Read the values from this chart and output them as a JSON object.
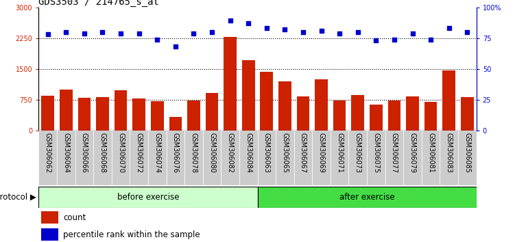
{
  "title": "GDS3503 / 214765_s_at",
  "categories": [
    "GSM306062",
    "GSM306064",
    "GSM306066",
    "GSM306068",
    "GSM306070",
    "GSM306072",
    "GSM306074",
    "GSM306076",
    "GSM306078",
    "GSM306080",
    "GSM306082",
    "GSM306084",
    "GSM306063",
    "GSM306065",
    "GSM306067",
    "GSM306069",
    "GSM306071",
    "GSM306073",
    "GSM306075",
    "GSM306077",
    "GSM306079",
    "GSM306081",
    "GSM306083",
    "GSM306085"
  ],
  "count": [
    850,
    1000,
    800,
    820,
    980,
    780,
    720,
    330,
    740,
    920,
    2280,
    1720,
    1440,
    1200,
    840,
    1250,
    730,
    870,
    640,
    730,
    840,
    700,
    1460,
    820
  ],
  "percentile": [
    78,
    80,
    79,
    80,
    79,
    79,
    74,
    68,
    79,
    80,
    89,
    87,
    83,
    82,
    80,
    81,
    79,
    80,
    73,
    74,
    79,
    74,
    83,
    80
  ],
  "before_exercise_count": 12,
  "ylim_left": [
    0,
    3000
  ],
  "ylim_right": [
    0,
    100
  ],
  "yticks_left": [
    0,
    750,
    1500,
    2250,
    3000
  ],
  "yticks_right": [
    0,
    25,
    50,
    75,
    100
  ],
  "bar_color": "#cc2200",
  "dot_color": "#0000cc",
  "before_color": "#ccffcc",
  "after_color": "#44dd44",
  "xtick_bg": "#cccccc",
  "protocol_label": "protocol",
  "before_label": "before exercise",
  "after_label": "after exercise",
  "legend_count_label": "count",
  "legend_percentile_label": "percentile rank within the sample",
  "title_fontsize": 10,
  "tick_fontsize": 7,
  "xtick_fontsize": 7
}
